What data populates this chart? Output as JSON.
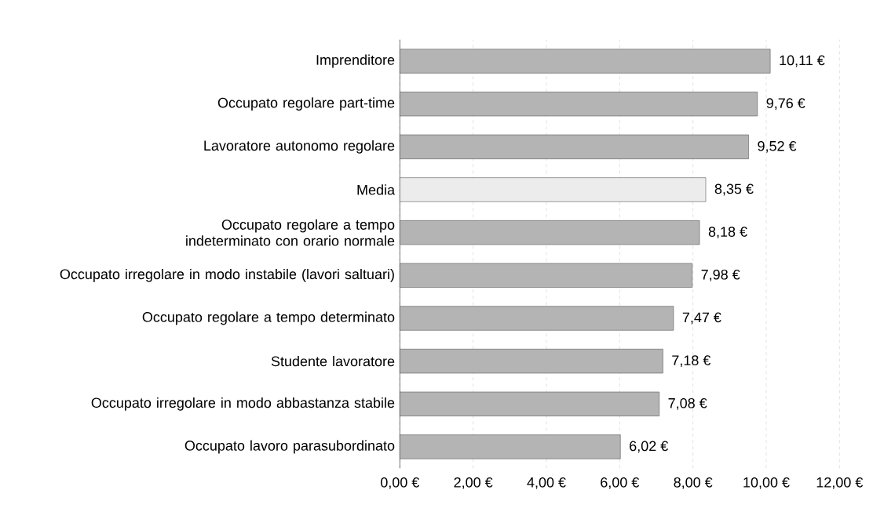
{
  "chart_data": {
    "type": "bar",
    "orientation": "horizontal",
    "categories": [
      "Imprenditore",
      "Occupato regolare part-time",
      "Lavoratore autonomo regolare",
      "Media",
      "Occupato regolare a tempo indeterminato con orario normale",
      "Occupato irregolare in modo instabile (lavori saltuari)",
      "Occupato regolare a tempo determinato",
      "Studente lavoratore",
      "Occupato irregolare in modo abbastanza stabile",
      "Occupato lavoro parasubordinato"
    ],
    "values": [
      10.11,
      9.76,
      9.52,
      8.35,
      8.18,
      7.98,
      7.47,
      7.18,
      7.08,
      6.02
    ],
    "value_labels": [
      "10,11 €",
      "9,76 €",
      "9,52 €",
      "8,35 €",
      "8,18 €",
      "7,98 €",
      "7,47 €",
      "7,18 €",
      "7,08 €",
      "6,02 €"
    ],
    "colors": [
      "#b4b4b4",
      "#b4b4b4",
      "#b4b4b4",
      "#ececec",
      "#b4b4b4",
      "#b4b4b4",
      "#b4b4b4",
      "#b4b4b4",
      "#b4b4b4",
      "#b4b4b4"
    ],
    "xlim": [
      0,
      12
    ],
    "xticks": [
      {
        "value": 0,
        "label": "0,00 €"
      },
      {
        "value": 2,
        "label": "2,00 €"
      },
      {
        "value": 4,
        "label": "4,00 €"
      },
      {
        "value": 6,
        "label": "6,00 €"
      },
      {
        "value": 8,
        "label": "8,00 €"
      },
      {
        "value": 10,
        "label": "10,00 €"
      },
      {
        "value": 12,
        "label": "12,00 €"
      }
    ],
    "grid": "x"
  }
}
